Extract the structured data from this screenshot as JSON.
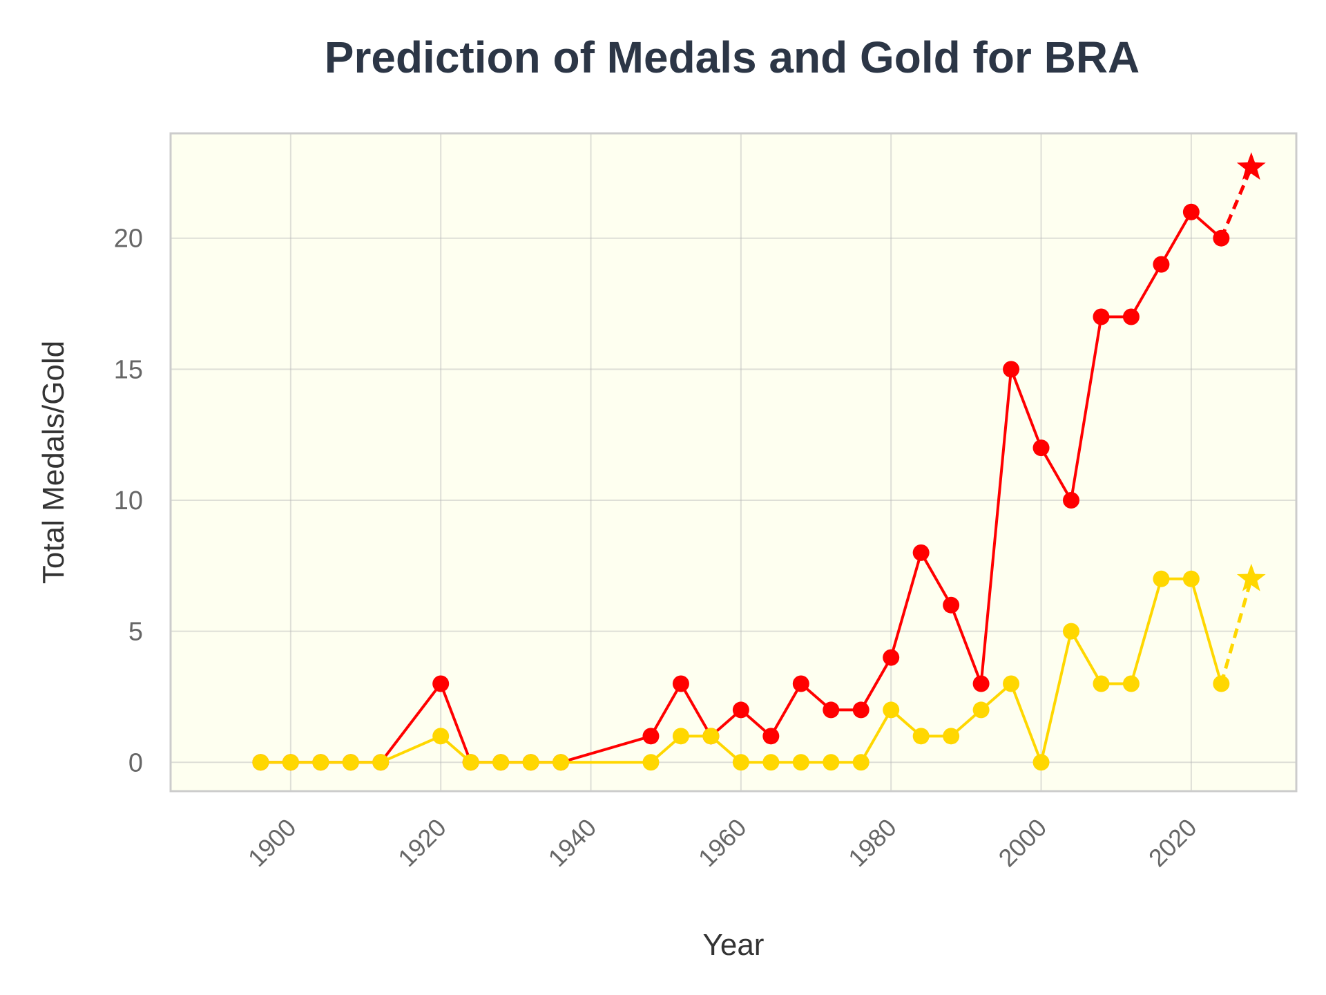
{
  "chart_data": {
    "type": "line",
    "title": "Prediction of Medals and Gold for BRA",
    "xlabel": "Year",
    "ylabel": "Total Medals/Gold",
    "xlim": [
      1884,
      2034
    ],
    "ylim": [
      -1.1,
      24
    ],
    "xticks": [
      1900,
      1920,
      1940,
      1960,
      1980,
      2000,
      2020
    ],
    "yticks": [
      0,
      5,
      10,
      15,
      20
    ],
    "grid": true,
    "background_color": "#fefff0",
    "series": [
      {
        "color": "#ff0000",
        "x": [
          1896,
          1900,
          1904,
          1908,
          1912,
          1920,
          1924,
          1928,
          1932,
          1936,
          1948,
          1952,
          1956,
          1960,
          1964,
          1968,
          1972,
          1976,
          1980,
          1984,
          1988,
          1992,
          1996,
          2000,
          2004,
          2008,
          2012,
          2016,
          2020,
          2024
        ],
        "values": [
          0,
          0,
          0,
          0,
          0,
          3,
          0,
          0,
          0,
          0,
          1,
          3,
          1,
          2,
          1,
          3,
          2,
          2,
          4,
          8,
          6,
          3,
          15,
          12,
          10,
          17,
          17,
          19,
          21,
          20
        ],
        "prediction": {
          "x": [
            2024,
            2028
          ],
          "values": [
            20,
            22.7
          ]
        }
      },
      {
        "color": "#ffd700",
        "x": [
          1896,
          1900,
          1904,
          1908,
          1912,
          1920,
          1924,
          1928,
          1932,
          1936,
          1948,
          1952,
          1956,
          1960,
          1964,
          1968,
          1972,
          1976,
          1980,
          1984,
          1988,
          1992,
          1996,
          2000,
          2004,
          2008,
          2012,
          2016,
          2020,
          2024
        ],
        "values": [
          0,
          0,
          0,
          0,
          0,
          1,
          0,
          0,
          0,
          0,
          0,
          1,
          1,
          0,
          0,
          0,
          0,
          0,
          2,
          1,
          1,
          2,
          3,
          0,
          5,
          3,
          3,
          7,
          7,
          3
        ],
        "prediction": {
          "x": [
            2024,
            2028
          ],
          "values": [
            3,
            7.0
          ]
        }
      }
    ]
  }
}
